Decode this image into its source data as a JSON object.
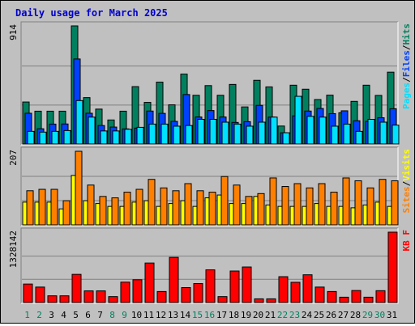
{
  "chart_data": {
    "type": "bar",
    "title": "Daily usage for March 2025",
    "categories": [
      "1",
      "2",
      "3",
      "4",
      "5",
      "6",
      "7",
      "8",
      "9",
      "10",
      "11",
      "12",
      "13",
      "14",
      "15",
      "16",
      "17",
      "18",
      "19",
      "20",
      "21",
      "22",
      "23",
      "24",
      "25",
      "26",
      "27",
      "28",
      "29",
      "30",
      "31"
    ],
    "weekend_days": [
      "1",
      "2",
      "8",
      "9",
      "15",
      "16",
      "22",
      "23",
      "29",
      "30"
    ],
    "colors": {
      "title": "#0000cc",
      "hits": "#00805f",
      "files": "#0040ff",
      "pages": "#00e0ff",
      "visits": "#ffff00",
      "sites": "#ff8000",
      "kbf": "#ff0000",
      "weekday_label": "#000000",
      "weekend_label": "#00805f",
      "background": "#c0c0c0"
    },
    "panels": [
      {
        "name": "hits-files-pages",
        "max_label": "914",
        "ylim": [
          0,
          914
        ],
        "legend": [
          "Pages",
          "Files",
          "Hits"
        ],
        "series": [
          {
            "name": "Hits",
            "values": [
              325,
              254,
              254,
              254,
              914,
              359,
              270,
              186,
              254,
              444,
              322,
              479,
              303,
              541,
              377,
              452,
              377,
              461,
              287,
              493,
              442,
              139,
              455,
              424,
              344,
              378,
              242,
              330,
              455,
              376,
              556
            ]
          },
          {
            "name": "Files",
            "values": [
              238,
              118,
              154,
              155,
              658,
              238,
              143,
              131,
              117,
              123,
              255,
              237,
              175,
              383,
              209,
              259,
              209,
              167,
              173,
              299,
              208,
              87,
              218,
              255,
              275,
              235,
              257,
              180,
              175,
              203,
              273
            ]
          },
          {
            "name": "Pages",
            "values": [
              98,
              92,
              98,
              104,
              336,
              208,
              101,
              101,
              114,
              129,
              154,
              154,
              138,
              143,
              191,
              191,
              169,
              154,
              138,
              169,
              208,
              87,
              369,
              214,
              208,
              138,
              154,
              98,
              191,
              169,
              146
            ]
          }
        ]
      },
      {
        "name": "visits-sites",
        "max_label": "207",
        "ylim": [
          0,
          207
        ],
        "legend": [
          "Sites",
          "Visits"
        ],
        "series": [
          {
            "name": "Visits",
            "values": [
              64,
              64,
              64,
              45,
              139,
              68,
              60,
              52,
              52,
              64,
              68,
              52,
              60,
              68,
              52,
              76,
              84,
              60,
              60,
              80,
              56,
              52,
              52,
              52,
              60,
              52,
              52,
              48,
              56,
              64,
              52
            ]
          },
          {
            "name": "Sites",
            "values": [
              96,
              100,
              100,
              68,
              207,
              112,
              80,
              76,
              92,
              100,
              128,
              104,
              96,
              116,
              96,
              92,
              136,
              112,
              80,
              88,
              132,
              108,
              116,
              104,
              116,
              92,
              132,
              124,
              104,
              128,
              124
            ]
          }
        ]
      },
      {
        "name": "kbf",
        "max_label": "1328142",
        "ylim": [
          0,
          1328142
        ],
        "legend": [
          "KB F"
        ],
        "series": [
          {
            "name": "KB F",
            "values": [
              349000,
              292000,
              127000,
              127000,
              532000,
              220000,
              220000,
              112000,
              385000,
              430000,
              746000,
              208000,
              853000,
              282000,
              358000,
              617000,
              112000,
              595000,
              671000,
              70000,
              70000,
              488000,
              382000,
              524000,
              292000,
              208000,
              101000,
              227000,
              101000,
              224000,
              1328142
            ]
          }
        ]
      }
    ]
  }
}
